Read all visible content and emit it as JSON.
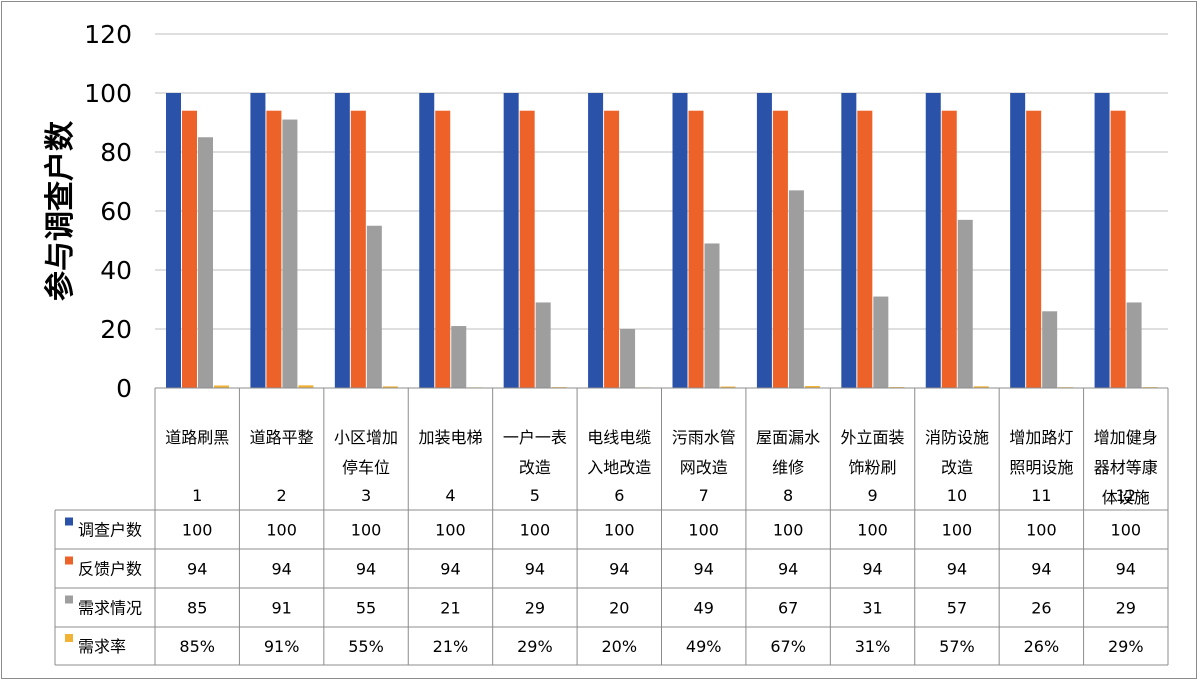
{
  "chart_data": {
    "type": "bar",
    "ylabel": "参与调查户数",
    "ylim": [
      0,
      120
    ],
    "yticks": [
      0,
      20,
      40,
      60,
      80,
      100,
      120
    ],
    "grid": true,
    "legend_placement": "data-table-left",
    "categories": [
      {
        "index": "1",
        "lines": [
          "道路刷黑"
        ]
      },
      {
        "index": "2",
        "lines": [
          "道路平整"
        ]
      },
      {
        "index": "3",
        "lines": [
          "小区增加",
          "停车位"
        ]
      },
      {
        "index": "4",
        "lines": [
          "加装电梯"
        ]
      },
      {
        "index": "5",
        "lines": [
          "一户一表",
          "改造"
        ]
      },
      {
        "index": "6",
        "lines": [
          "电线电缆",
          "入地改造"
        ]
      },
      {
        "index": "7",
        "lines": [
          "污雨水管",
          "网改造"
        ]
      },
      {
        "index": "8",
        "lines": [
          "屋面漏水",
          "维修"
        ]
      },
      {
        "index": "9",
        "lines": [
          "外立面装",
          "饰粉刷"
        ]
      },
      {
        "index": "10",
        "lines": [
          "消防设施",
          "改造"
        ]
      },
      {
        "index": "11",
        "lines": [
          "增加路灯",
          "照明设施"
        ]
      },
      {
        "index": "12",
        "lines": [
          "增加健身",
          "器材等康",
          "体设施"
        ]
      }
    ],
    "series": [
      {
        "name": "调查户数",
        "color": "#2952a8",
        "values": [
          100,
          100,
          100,
          100,
          100,
          100,
          100,
          100,
          100,
          100,
          100,
          100
        ],
        "labels": [
          "100",
          "100",
          "100",
          "100",
          "100",
          "100",
          "100",
          "100",
          "100",
          "100",
          "100",
          "100"
        ]
      },
      {
        "name": "反馈户数",
        "color": "#ed6228",
        "values": [
          94,
          94,
          94,
          94,
          94,
          94,
          94,
          94,
          94,
          94,
          94,
          94
        ],
        "labels": [
          "94",
          "94",
          "94",
          "94",
          "94",
          "94",
          "94",
          "94",
          "94",
          "94",
          "94",
          "94"
        ]
      },
      {
        "name": "需求情况",
        "color": "#9e9e9e",
        "values": [
          85,
          91,
          55,
          21,
          29,
          20,
          49,
          67,
          31,
          57,
          26,
          29
        ],
        "labels": [
          "85",
          "91",
          "55",
          "21",
          "29",
          "20",
          "49",
          "67",
          "31",
          "57",
          "26",
          "29"
        ]
      },
      {
        "name": "需求率",
        "color": "#f2b233",
        "values": [
          0.85,
          0.91,
          0.55,
          0.21,
          0.29,
          0.2,
          0.49,
          0.67,
          0.31,
          0.57,
          0.26,
          0.29
        ],
        "labels": [
          "85%",
          "91%",
          "55%",
          "21%",
          "29%",
          "20%",
          "49%",
          "67%",
          "31%",
          "57%",
          "26%",
          "29%"
        ]
      }
    ]
  }
}
